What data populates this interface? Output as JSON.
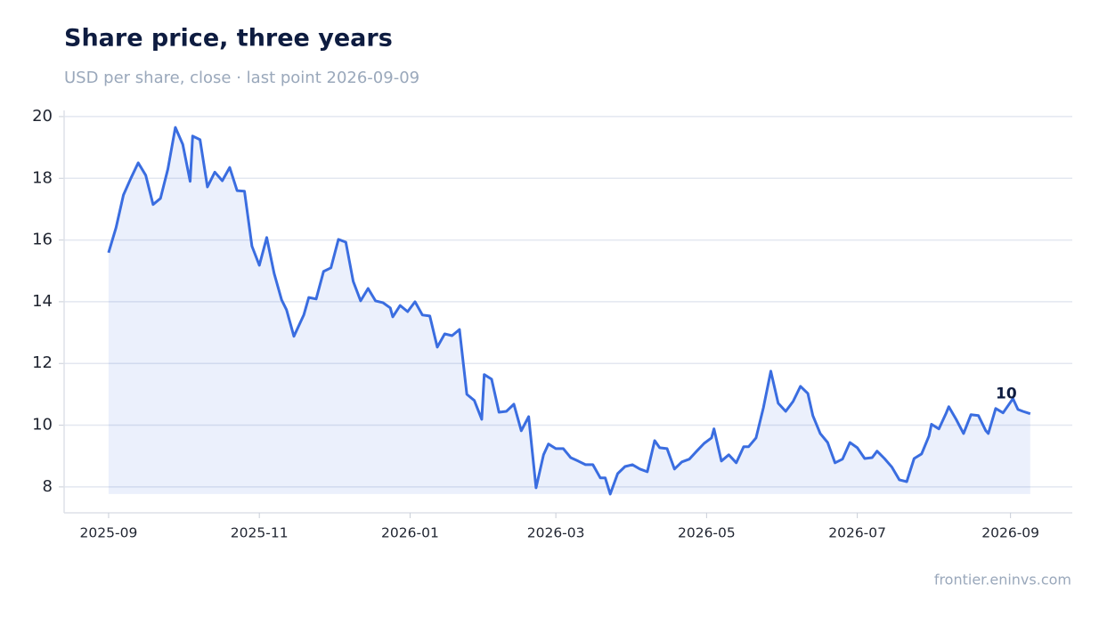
{
  "chart_data": {
    "type": "line",
    "title": "Share price, three years",
    "subtitle": "USD per share, close · last point 2026-09-09",
    "source": "frontier.eninvs.com",
    "color": "#3a6de0",
    "grid": true,
    "x": [
      "2025-09-01",
      "2025-09-04",
      "2025-09-07",
      "2025-09-10",
      "2025-09-13",
      "2025-09-16",
      "2025-09-19",
      "2025-09-22",
      "2025-09-25",
      "2025-09-28",
      "2025-10-01",
      "2025-10-04",
      "2025-10-05",
      "2025-10-08",
      "2025-10-11",
      "2025-10-14",
      "2025-10-17",
      "2025-10-20",
      "2025-10-23",
      "2025-10-26",
      "2025-10-29",
      "2025-11-01",
      "2025-11-04",
      "2025-11-07",
      "2025-11-10",
      "2025-11-12",
      "2025-11-15",
      "2025-11-19",
      "2025-11-21",
      "2025-11-24",
      "2025-11-27",
      "2025-11-30",
      "2025-12-03",
      "2025-12-06",
      "2025-12-09",
      "2025-12-12",
      "2025-12-15",
      "2025-12-18",
      "2025-12-21",
      "2025-12-24",
      "2025-12-25",
      "2025-12-28",
      "2025-12-31",
      "2026-01-03",
      "2026-01-06",
      "2026-01-09",
      "2026-01-12",
      "2026-01-15",
      "2026-01-18",
      "2026-01-21",
      "2026-01-24",
      "2026-01-27",
      "2026-01-30",
      "2026-01-31",
      "2026-02-03",
      "2026-02-06",
      "2026-02-09",
      "2026-02-12",
      "2026-02-15",
      "2026-02-18",
      "2026-02-21",
      "2026-02-24",
      "2026-02-26",
      "2026-03-01",
      "2026-03-04",
      "2026-03-07",
      "2026-03-10",
      "2026-03-13",
      "2026-03-16",
      "2026-03-19",
      "2026-03-21",
      "2026-03-23",
      "2026-03-26",
      "2026-03-29",
      "2026-04-01",
      "2026-04-04",
      "2026-04-07",
      "2026-04-10",
      "2026-04-12",
      "2026-04-15",
      "2026-04-18",
      "2026-04-21",
      "2026-04-24",
      "2026-04-27",
      "2026-04-30",
      "2026-05-03",
      "2026-05-04",
      "2026-05-07",
      "2026-05-10",
      "2026-05-13",
      "2026-05-16",
      "2026-05-18",
      "2026-05-21",
      "2026-05-24",
      "2026-05-27",
      "2026-05-30",
      "2026-06-02",
      "2026-06-05",
      "2026-06-08",
      "2026-06-11",
      "2026-06-13",
      "2026-06-16",
      "2026-06-19",
      "2026-06-22",
      "2026-06-25",
      "2026-06-28",
      "2026-07-01",
      "2026-07-04",
      "2026-07-07",
      "2026-07-09",
      "2026-07-12",
      "2026-07-15",
      "2026-07-18",
      "2026-07-21",
      "2026-07-24",
      "2026-07-27",
      "2026-07-30",
      "2026-07-31",
      "2026-08-03",
      "2026-08-06",
      "2026-08-07",
      "2026-08-10",
      "2026-08-13",
      "2026-08-16",
      "2026-08-19",
      "2026-08-22",
      "2026-08-23",
      "2026-08-26",
      "2026-08-29",
      "2026-09-02",
      "2026-09-04",
      "2026-09-06",
      "2026-09-09"
    ],
    "values": [
      15.59,
      16.4,
      17.46,
      18.0,
      18.5,
      18.1,
      17.15,
      17.35,
      18.3,
      19.65,
      19.1,
      17.9,
      19.37,
      19.25,
      17.72,
      18.2,
      17.92,
      18.35,
      17.6,
      17.58,
      15.8,
      15.18,
      16.08,
      14.92,
      14.06,
      13.74,
      12.88,
      13.57,
      14.14,
      14.09,
      14.98,
      15.1,
      16.02,
      15.93,
      14.66,
      14.03,
      14.43,
      14.03,
      13.97,
      13.8,
      13.51,
      13.88,
      13.68,
      14.0,
      13.57,
      13.54,
      12.53,
      12.96,
      12.9,
      13.1,
      11.0,
      10.8,
      10.19,
      11.64,
      11.49,
      10.42,
      10.45,
      10.68,
      9.82,
      10.28,
      7.97,
      9.04,
      9.39,
      9.24,
      9.24,
      8.95,
      8.84,
      8.72,
      8.72,
      8.29,
      8.29,
      7.77,
      8.43,
      8.66,
      8.72,
      8.58,
      8.49,
      9.5,
      9.27,
      9.24,
      8.58,
      8.81,
      8.9,
      9.16,
      9.41,
      9.59,
      9.88,
      8.84,
      9.04,
      8.78,
      9.3,
      9.3,
      9.59,
      10.57,
      11.75,
      10.71,
      10.45,
      10.77,
      11.26,
      11.03,
      10.31,
      9.73,
      9.44,
      8.78,
      8.9,
      9.44,
      9.27,
      8.92,
      8.95,
      9.16,
      8.92,
      8.64,
      8.23,
      8.17,
      8.92,
      9.07,
      9.65,
      10.03,
      9.88,
      10.4,
      10.6,
      10.19,
      9.73,
      10.34,
      10.31,
      9.82,
      9.73,
      10.54,
      10.4,
      10.86,
      10.51,
      10.45,
      10.37
    ],
    "annotation": "10",
    "xlim": [
      "2025-08-14",
      "2026-09-26"
    ],
    "xticks": [
      {
        "value": "2025-09-01",
        "label": "2025-09"
      },
      {
        "value": "2025-11-01",
        "label": "2025-11"
      },
      {
        "value": "2026-01-01",
        "label": "2026-01"
      },
      {
        "value": "2026-03-01",
        "label": "2026-03"
      },
      {
        "value": "2026-05-01",
        "label": "2026-05"
      },
      {
        "value": "2026-07-01",
        "label": "2026-07"
      },
      {
        "value": "2026-09-01",
        "label": "2026-09"
      }
    ],
    "ylim": [
      7.16,
      20.2
    ],
    "yticks": [
      8,
      10,
      12,
      14,
      16,
      18,
      20
    ]
  }
}
